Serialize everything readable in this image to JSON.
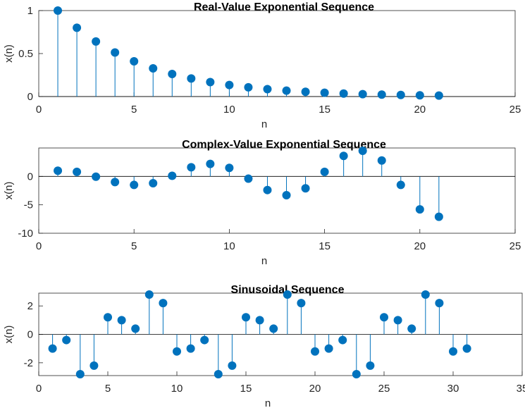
{
  "colors": {
    "stem": "#0072BD",
    "axis": "#262626",
    "background": "#ffffff"
  },
  "chart_data": [
    {
      "type": "stem",
      "title": "Real-Value Exponential Sequence",
      "xlabel": "n",
      "ylabel": "x(n)",
      "xlim": [
        0,
        25
      ],
      "ylim": [
        0,
        1
      ],
      "xticks": [
        0,
        5,
        10,
        15,
        20,
        25
      ],
      "yticks": [
        0,
        0.5,
        1
      ],
      "x": [
        1,
        2,
        3,
        4,
        5,
        6,
        7,
        8,
        9,
        10,
        11,
        12,
        13,
        14,
        15,
        16,
        17,
        18,
        19,
        20,
        21
      ],
      "y": [
        1,
        0.8,
        0.64,
        0.512,
        0.4096,
        0.3277,
        0.2621,
        0.2097,
        0.1678,
        0.1342,
        0.1074,
        0.0859,
        0.0687,
        0.055,
        0.044,
        0.0352,
        0.0281,
        0.0225,
        0.018,
        0.0144,
        0.0115
      ],
      "grid": false
    },
    {
      "type": "stem",
      "title": "Complex-Value Exponential Sequence",
      "xlabel": "n",
      "ylabel": "x(n)",
      "xlim": [
        0,
        25
      ],
      "ylim": [
        -10,
        5
      ],
      "xticks": [
        0,
        5,
        10,
        15,
        20,
        25
      ],
      "yticks": [
        -10,
        -5,
        0
      ],
      "x": [
        1,
        2,
        3,
        4,
        5,
        6,
        7,
        8,
        9,
        10,
        11,
        12,
        13,
        14,
        15,
        16,
        17,
        18,
        19,
        20,
        21
      ],
      "y": [
        1.0,
        0.8,
        -0.05,
        -1.0,
        -1.5,
        -1.2,
        0.1,
        1.6,
        2.2,
        1.5,
        -0.4,
        -2.4,
        -3.3,
        -2.1,
        0.8,
        3.6,
        4.5,
        2.8,
        -1.5,
        -5.8,
        -7.1
      ],
      "grid": false
    },
    {
      "type": "stem",
      "title": "Sinusoidal Sequence",
      "xlabel": "n",
      "ylabel": "x(n)",
      "xlim": [
        0,
        35
      ],
      "ylim": [
        -2.9,
        2.9
      ],
      "xticks": [
        0,
        5,
        10,
        15,
        20,
        25,
        30,
        35
      ],
      "yticks": [
        -2,
        0,
        2
      ],
      "x": [
        1,
        2,
        3,
        4,
        5,
        6,
        7,
        8,
        9,
        10,
        11,
        12,
        13,
        14,
        15,
        16,
        17,
        18,
        19,
        20,
        21,
        22,
        23,
        24,
        25,
        26,
        27,
        28,
        29,
        30,
        31
      ],
      "y": [
        -1.0,
        -0.4,
        -2.8,
        -2.2,
        1.2,
        1.0,
        0.4,
        2.8,
        2.2,
        -1.2,
        -1.0,
        -0.4,
        -2.8,
        -2.2,
        1.2,
        1.0,
        0.4,
        2.8,
        2.2,
        -1.2,
        -1.0,
        -0.4,
        -2.8,
        -2.2,
        1.2,
        1.0,
        0.4,
        2.8,
        2.2,
        -1.2,
        -1.0
      ],
      "grid": false
    }
  ]
}
